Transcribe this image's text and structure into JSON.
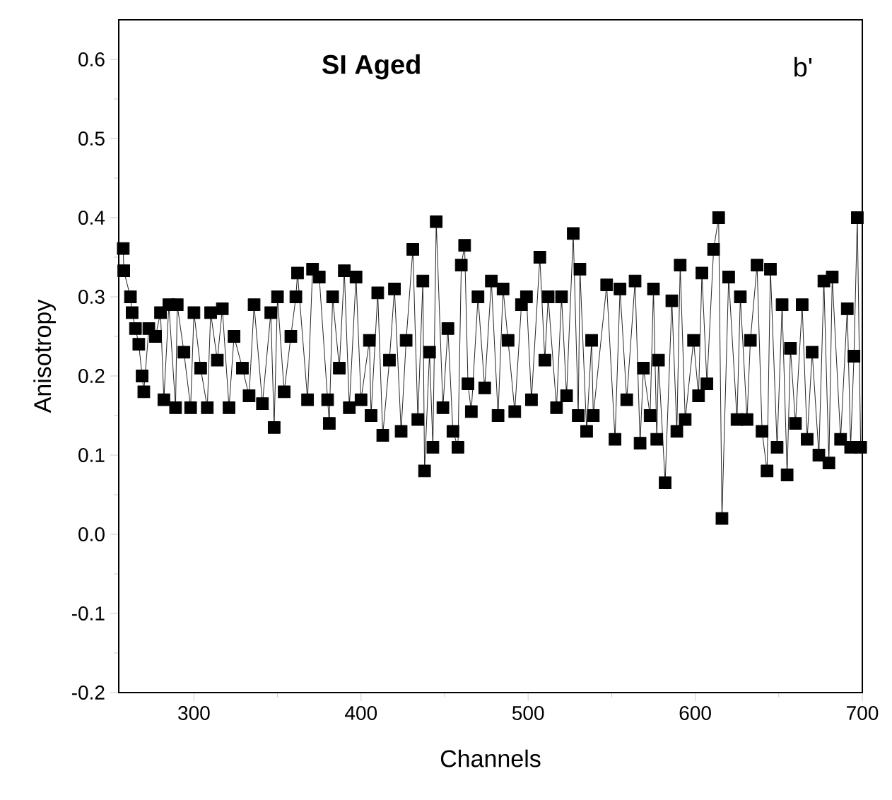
{
  "chart_data": {
    "type": "line",
    "xlabel": "Channels",
    "ylabel": "Anisotropy",
    "annotations": [
      "SI Aged",
      "b'"
    ],
    "xlim": [
      255,
      700
    ],
    "xticks": [
      300,
      400,
      500,
      600,
      700
    ],
    "ylim": [
      -0.2,
      0.65
    ],
    "yticks": [
      -0.2,
      -0.1,
      {
        "value": 0,
        "label": "0.0"
      },
      0.1,
      0.2,
      0.3,
      0.4,
      0.5,
      0.6
    ],
    "marker": "square",
    "line_style": "solid",
    "series": [
      {
        "color": "#000000",
        "x": [
          257.7,
          258,
          262,
          263,
          265,
          267,
          269,
          270,
          273,
          277,
          280,
          282,
          285,
          289,
          290,
          294,
          298,
          300,
          304,
          308,
          310,
          314,
          317,
          321,
          324,
          329,
          333,
          336,
          341,
          346,
          348,
          350,
          354,
          358,
          361,
          362,
          368,
          371,
          375,
          380,
          381,
          383,
          387,
          390,
          393,
          397,
          400,
          405,
          406,
          410,
          413,
          417,
          420,
          424,
          427,
          431,
          434,
          437,
          438,
          441,
          443,
          445,
          449,
          452,
          455,
          458,
          460,
          462,
          464,
          466,
          470,
          474,
          478,
          482,
          485,
          488,
          492,
          496,
          499,
          502,
          507,
          510,
          512,
          517,
          520,
          523,
          527,
          530,
          531,
          535,
          538,
          539,
          547,
          552,
          555,
          559,
          564,
          567,
          569,
          573,
          575,
          577,
          578,
          582,
          586,
          589,
          591,
          594,
          599,
          602,
          604,
          607,
          611,
          614,
          616,
          620,
          625,
          627,
          631,
          633,
          637,
          640,
          643,
          645,
          649,
          652,
          655,
          657,
          660,
          664,
          667,
          670,
          674,
          677,
          680,
          682,
          687,
          691,
          693,
          695,
          697,
          699
        ],
        "values": [
          0.361,
          0.333,
          0.3,
          0.28,
          0.26,
          0.24,
          0.2,
          0.18,
          0.26,
          0.25,
          0.28,
          0.17,
          0.29,
          0.16,
          0.29,
          0.23,
          0.16,
          0.28,
          0.21,
          0.16,
          0.28,
          0.22,
          0.285,
          0.16,
          0.25,
          0.21,
          0.175,
          0.29,
          0.165,
          0.28,
          0.135,
          0.3,
          0.18,
          0.25,
          0.3,
          0.33,
          0.17,
          0.335,
          0.325,
          0.17,
          0.14,
          0.3,
          0.21,
          0.333,
          0.16,
          0.325,
          0.17,
          0.245,
          0.15,
          0.305,
          0.125,
          0.22,
          0.31,
          0.13,
          0.245,
          0.36,
          0.145,
          0.32,
          0.08,
          0.23,
          0.11,
          0.395,
          0.16,
          0.26,
          0.13,
          0.11,
          0.34,
          0.365,
          0.19,
          0.155,
          0.3,
          0.185,
          0.32,
          0.15,
          0.31,
          0.245,
          0.155,
          0.29,
          0.3,
          0.17,
          0.35,
          0.22,
          0.3,
          0.16,
          0.3,
          0.175,
          0.38,
          0.15,
          0.335,
          0.13,
          0.245,
          0.15,
          0.315,
          0.12,
          0.31,
          0.17,
          0.32,
          0.115,
          0.21,
          0.15,
          0.31,
          0.12,
          0.22,
          0.065,
          0.295,
          0.13,
          0.34,
          0.145,
          0.245,
          0.175,
          0.33,
          0.19,
          0.36,
          0.4,
          0.02,
          0.325,
          0.145,
          0.3,
          0.145,
          0.245,
          0.34,
          0.13,
          0.08,
          0.335,
          0.11,
          0.29,
          0.075,
          0.235,
          0.14,
          0.29,
          0.12,
          0.23,
          0.1,
          0.32,
          0.09,
          0.325,
          0.12,
          0.285,
          0.11,
          0.225,
          0.4,
          0.11
        ]
      }
    ]
  }
}
